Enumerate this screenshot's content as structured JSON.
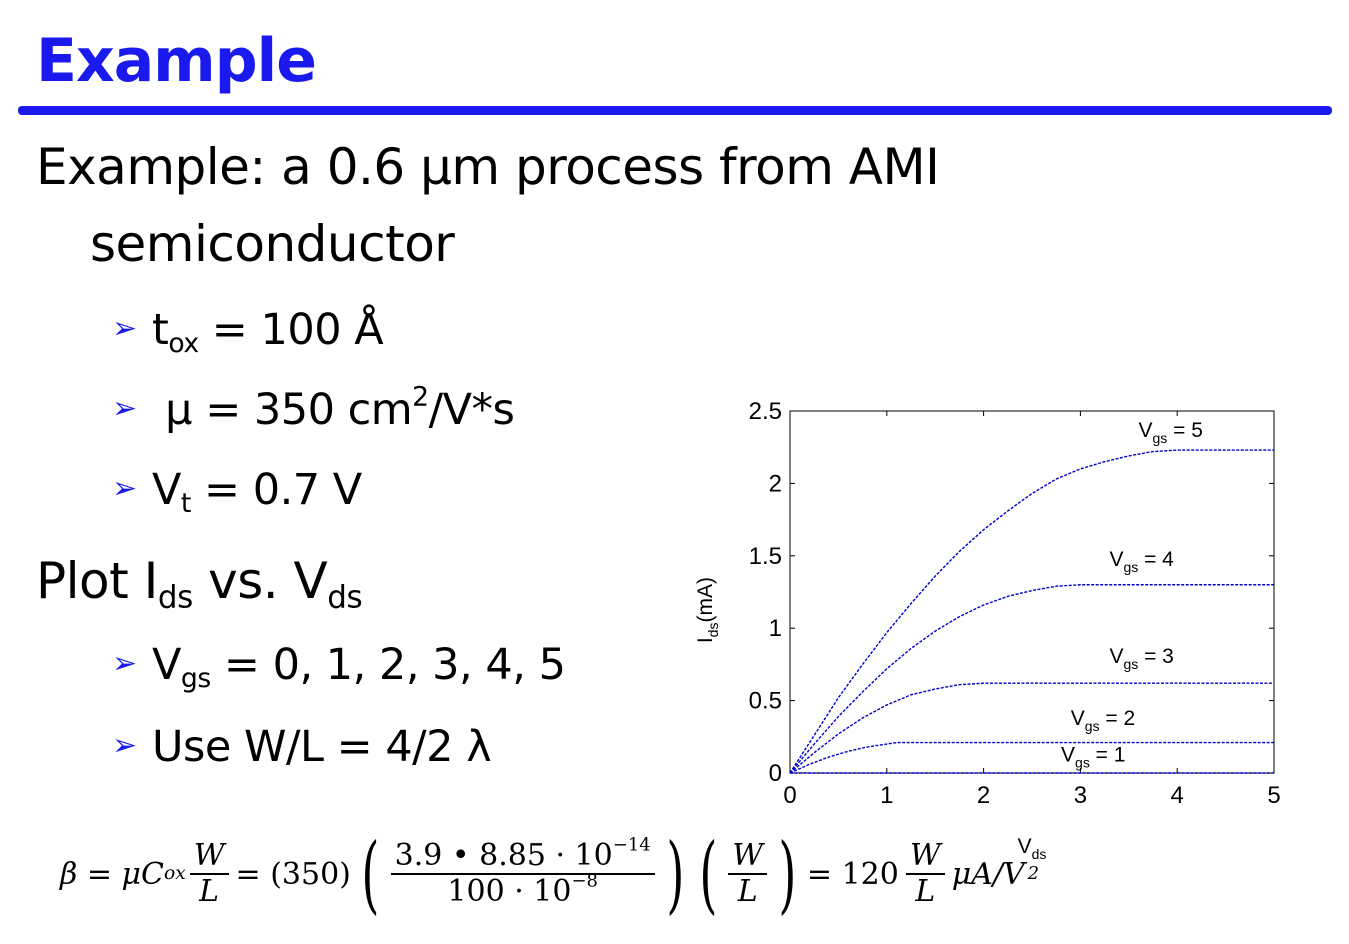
{
  "slide": {
    "title": "Example",
    "line1": "Example: a 0.6 μm process from AMI",
    "line2": "semiconductor",
    "bullets1": [
      {
        "main": "t",
        "sub": "ox",
        "rest": " = 100 Å"
      },
      {
        "main": " μ = 350 cm",
        "sup": "2",
        "rest": "/V*s"
      },
      {
        "main": "V",
        "sub": "t",
        "rest": " = 0.7 V"
      }
    ],
    "plot_line": {
      "a": "Plot I",
      "a_sub": "ds",
      "b": " vs. V",
      "b_sub": "ds"
    },
    "bullets2": [
      {
        "main": "V",
        "sub": "gs",
        "rest": " = 0, 1, 2, 3, 4, 5"
      },
      {
        "main": "Use W/L = 4/2 λ"
      }
    ],
    "arrow_glyph": "➢",
    "accent_color": "#1a1aee"
  },
  "formula": {
    "beta": "β = μC",
    "cox_sub": "ox",
    "frac_w": "W",
    "frac_l": "L",
    "eq_350": "= (350)",
    "num_expr": "3.9 • 8.85 · 10",
    "num_exp": "−14",
    "den_expr": "100 · 10",
    "den_exp": "−8",
    "eq_120": "= 120",
    "unit": "μA/V",
    "unit_exp": "2"
  },
  "chart_data": {
    "type": "line",
    "xlabel": "V",
    "xlabel_sub": "ds",
    "ylabel": "I",
    "ylabel_sub": "ds",
    "ylabel_unit": "(mA)",
    "xlim": [
      0,
      5
    ],
    "ylim": [
      0,
      2.5
    ],
    "xticks": [
      0,
      1,
      2,
      3,
      4,
      5
    ],
    "yticks": [
      0,
      0.5,
      1,
      1.5,
      2,
      2.5
    ],
    "ytick_labels": [
      "0",
      "0.5",
      "1",
      "1.5",
      "2",
      "2.5"
    ],
    "line_color": "#0000cc",
    "series": [
      {
        "name": "V",
        "name_sub": "gs",
        "name_rest": " = 1",
        "x": [
          0,
          5
        ],
        "y": [
          0,
          0
        ],
        "label_pos": [
          2.8,
          0.08
        ]
      },
      {
        "name": "V",
        "name_sub": "gs",
        "name_rest": " = 2",
        "x": [
          0,
          0.2,
          0.4,
          0.6,
          0.8,
          1.0,
          1.1,
          1.3,
          5
        ],
        "y": [
          0,
          0.06,
          0.11,
          0.15,
          0.18,
          0.2,
          0.21,
          0.21,
          0.21
        ],
        "label_pos": [
          2.9,
          0.33
        ]
      },
      {
        "name": "V",
        "name_sub": "gs",
        "name_rest": " = 3",
        "x": [
          0,
          0.25,
          0.5,
          0.75,
          1.0,
          1.25,
          1.5,
          1.75,
          2.0,
          5
        ],
        "y": [
          0,
          0.14,
          0.27,
          0.38,
          0.47,
          0.54,
          0.58,
          0.61,
          0.62,
          0.62
        ],
        "label_pos": [
          3.3,
          0.76
        ]
      },
      {
        "name": "V",
        "name_sub": "gs",
        "name_rest": " = 4",
        "x": [
          0,
          0.25,
          0.5,
          0.75,
          1.0,
          1.25,
          1.5,
          1.75,
          2.0,
          2.25,
          2.5,
          2.75,
          3.0,
          5
        ],
        "y": [
          0,
          0.2,
          0.39,
          0.56,
          0.72,
          0.86,
          0.98,
          1.08,
          1.16,
          1.22,
          1.26,
          1.29,
          1.3,
          1.3
        ],
        "label_pos": [
          3.3,
          1.43
        ]
      },
      {
        "name": "V",
        "name_sub": "gs",
        "name_rest": " = 5",
        "x": [
          0,
          0.25,
          0.5,
          0.75,
          1.0,
          1.25,
          1.5,
          1.75,
          2.0,
          2.25,
          2.5,
          2.75,
          3.0,
          3.25,
          3.5,
          3.75,
          4.0,
          5
        ],
        "y": [
          0,
          0.26,
          0.52,
          0.75,
          0.97,
          1.17,
          1.36,
          1.53,
          1.68,
          1.81,
          1.93,
          2.03,
          2.1,
          2.15,
          2.19,
          2.22,
          2.23,
          2.23
        ],
        "label_pos": [
          3.6,
          2.32
        ]
      }
    ]
  }
}
